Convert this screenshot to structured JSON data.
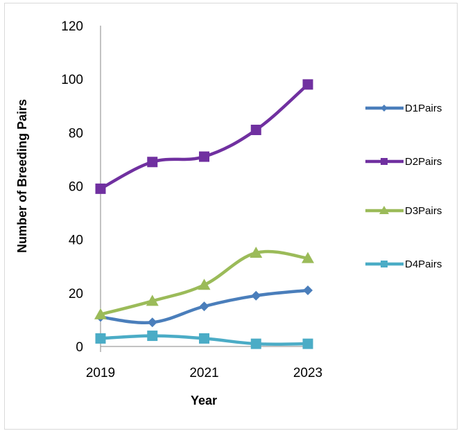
{
  "chart_data": {
    "type": "line",
    "title": "",
    "xlabel": "Year",
    "ylabel": "Number of Breeding Pairs",
    "x": [
      2019,
      2020,
      2021,
      2022,
      2023
    ],
    "x_tick_labels": [
      "2019",
      "2021",
      "2023"
    ],
    "y_ticks": [
      0,
      20,
      40,
      60,
      80,
      100,
      120
    ],
    "ylim": [
      0,
      120
    ],
    "grid": false,
    "legend_position": "right",
    "smooth": true,
    "series": [
      {
        "name": "D1Pairs",
        "values": [
          11,
          9,
          15,
          19,
          21
        ],
        "color": "#4a7ebb",
        "marker": "diamond"
      },
      {
        "name": "D2Pairs",
        "values": [
          59,
          69,
          71,
          81,
          98
        ],
        "color": "#7030a0",
        "marker": "square"
      },
      {
        "name": "D3Pairs",
        "values": [
          12,
          17,
          23,
          35,
          33
        ],
        "color": "#9bbb59",
        "marker": "triangle"
      },
      {
        "name": "D4Pairs",
        "values": [
          3,
          4,
          3,
          1,
          1
        ],
        "color": "#4bacc6",
        "marker": "square"
      }
    ]
  }
}
